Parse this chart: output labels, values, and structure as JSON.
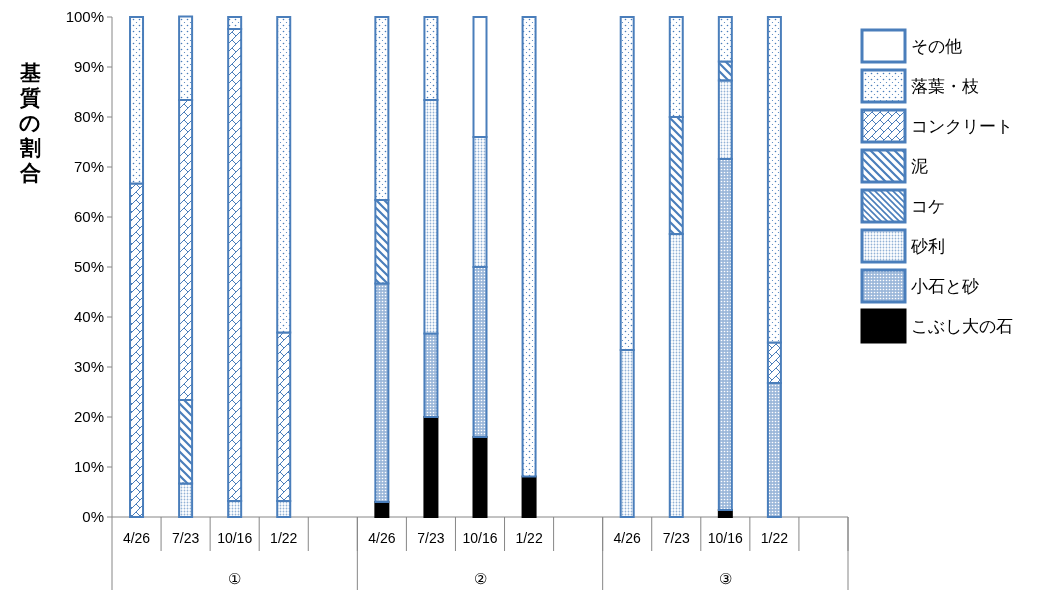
{
  "chart_data": {
    "type": "bar",
    "stacked": true,
    "ylabel": "基質の割合",
    "ylim": [
      0,
      100
    ],
    "yticks": [
      {
        "value": 0,
        "label": "0%"
      },
      {
        "value": 10,
        "label": "10%"
      },
      {
        "value": 20,
        "label": "20%"
      },
      {
        "value": 30,
        "label": "30%"
      },
      {
        "value": 40,
        "label": "40%"
      },
      {
        "value": 50,
        "label": "50%"
      },
      {
        "value": 60,
        "label": "60%"
      },
      {
        "value": 70,
        "label": "70%"
      },
      {
        "value": 80,
        "label": "80%"
      },
      {
        "value": 90,
        "label": "90%"
      },
      {
        "value": 100,
        "label": "100%"
      }
    ],
    "categories": [
      "4/26",
      "7/23",
      "10/16",
      "1/22",
      null,
      "4/26",
      "7/23",
      "10/16",
      "1/22",
      null,
      "4/26",
      "7/23",
      "10/16",
      "1/22",
      null
    ],
    "annotations": [
      "①",
      "②",
      "③"
    ],
    "legend": "right",
    "grid": false,
    "series": [
      {
        "name": "こぶし大の石",
        "color": "#000000",
        "values": [
          0,
          0,
          0,
          0,
          null,
          3,
          20,
          16,
          8.1,
          null,
          0,
          0,
          1.4,
          0,
          null
        ]
      },
      {
        "name": "小石と砂",
        "color": "#4a7ebb",
        "values": [
          0,
          0,
          0,
          0,
          null,
          43.7,
          16.7,
          34,
          0,
          null,
          0,
          0,
          70.2,
          26.8,
          null
        ]
      },
      {
        "name": "砂利",
        "color": "#4a7ebb",
        "values": [
          0,
          6.7,
          3.2,
          3.2,
          null,
          0,
          46.7,
          26,
          0,
          null,
          33.4,
          56.6,
          15.7,
          0,
          null
        ]
      },
      {
        "name": "コケ",
        "color": "#4a7ebb",
        "values": [
          0,
          0,
          0,
          0,
          null,
          0,
          0,
          0,
          0,
          null,
          0,
          0,
          0,
          0,
          null
        ]
      },
      {
        "name": "泥",
        "color": "#4a7ebb",
        "values": [
          0,
          16.7,
          0,
          0,
          null,
          16.7,
          0,
          0,
          0,
          null,
          0,
          23.4,
          3.8,
          0,
          null
        ]
      },
      {
        "name": "コンクリート",
        "color": "#4a7ebb",
        "values": [
          66.7,
          60,
          94.4,
          33.7,
          null,
          0,
          0,
          0,
          0,
          null,
          0,
          0,
          0,
          8.1,
          null
        ]
      },
      {
        "name": "落葉・枝",
        "color": "#4a7ebb",
        "values": [
          33.3,
          16.7,
          2.4,
          63.1,
          null,
          36.6,
          16.6,
          0,
          91.9,
          null,
          66.6,
          20,
          8.9,
          65.1,
          null
        ]
      },
      {
        "name": "その他",
        "color": "#4a7ebb",
        "values": [
          0,
          0,
          0,
          0,
          null,
          0,
          0,
          24,
          0,
          null,
          0,
          0,
          0,
          0,
          null
        ]
      }
    ]
  }
}
